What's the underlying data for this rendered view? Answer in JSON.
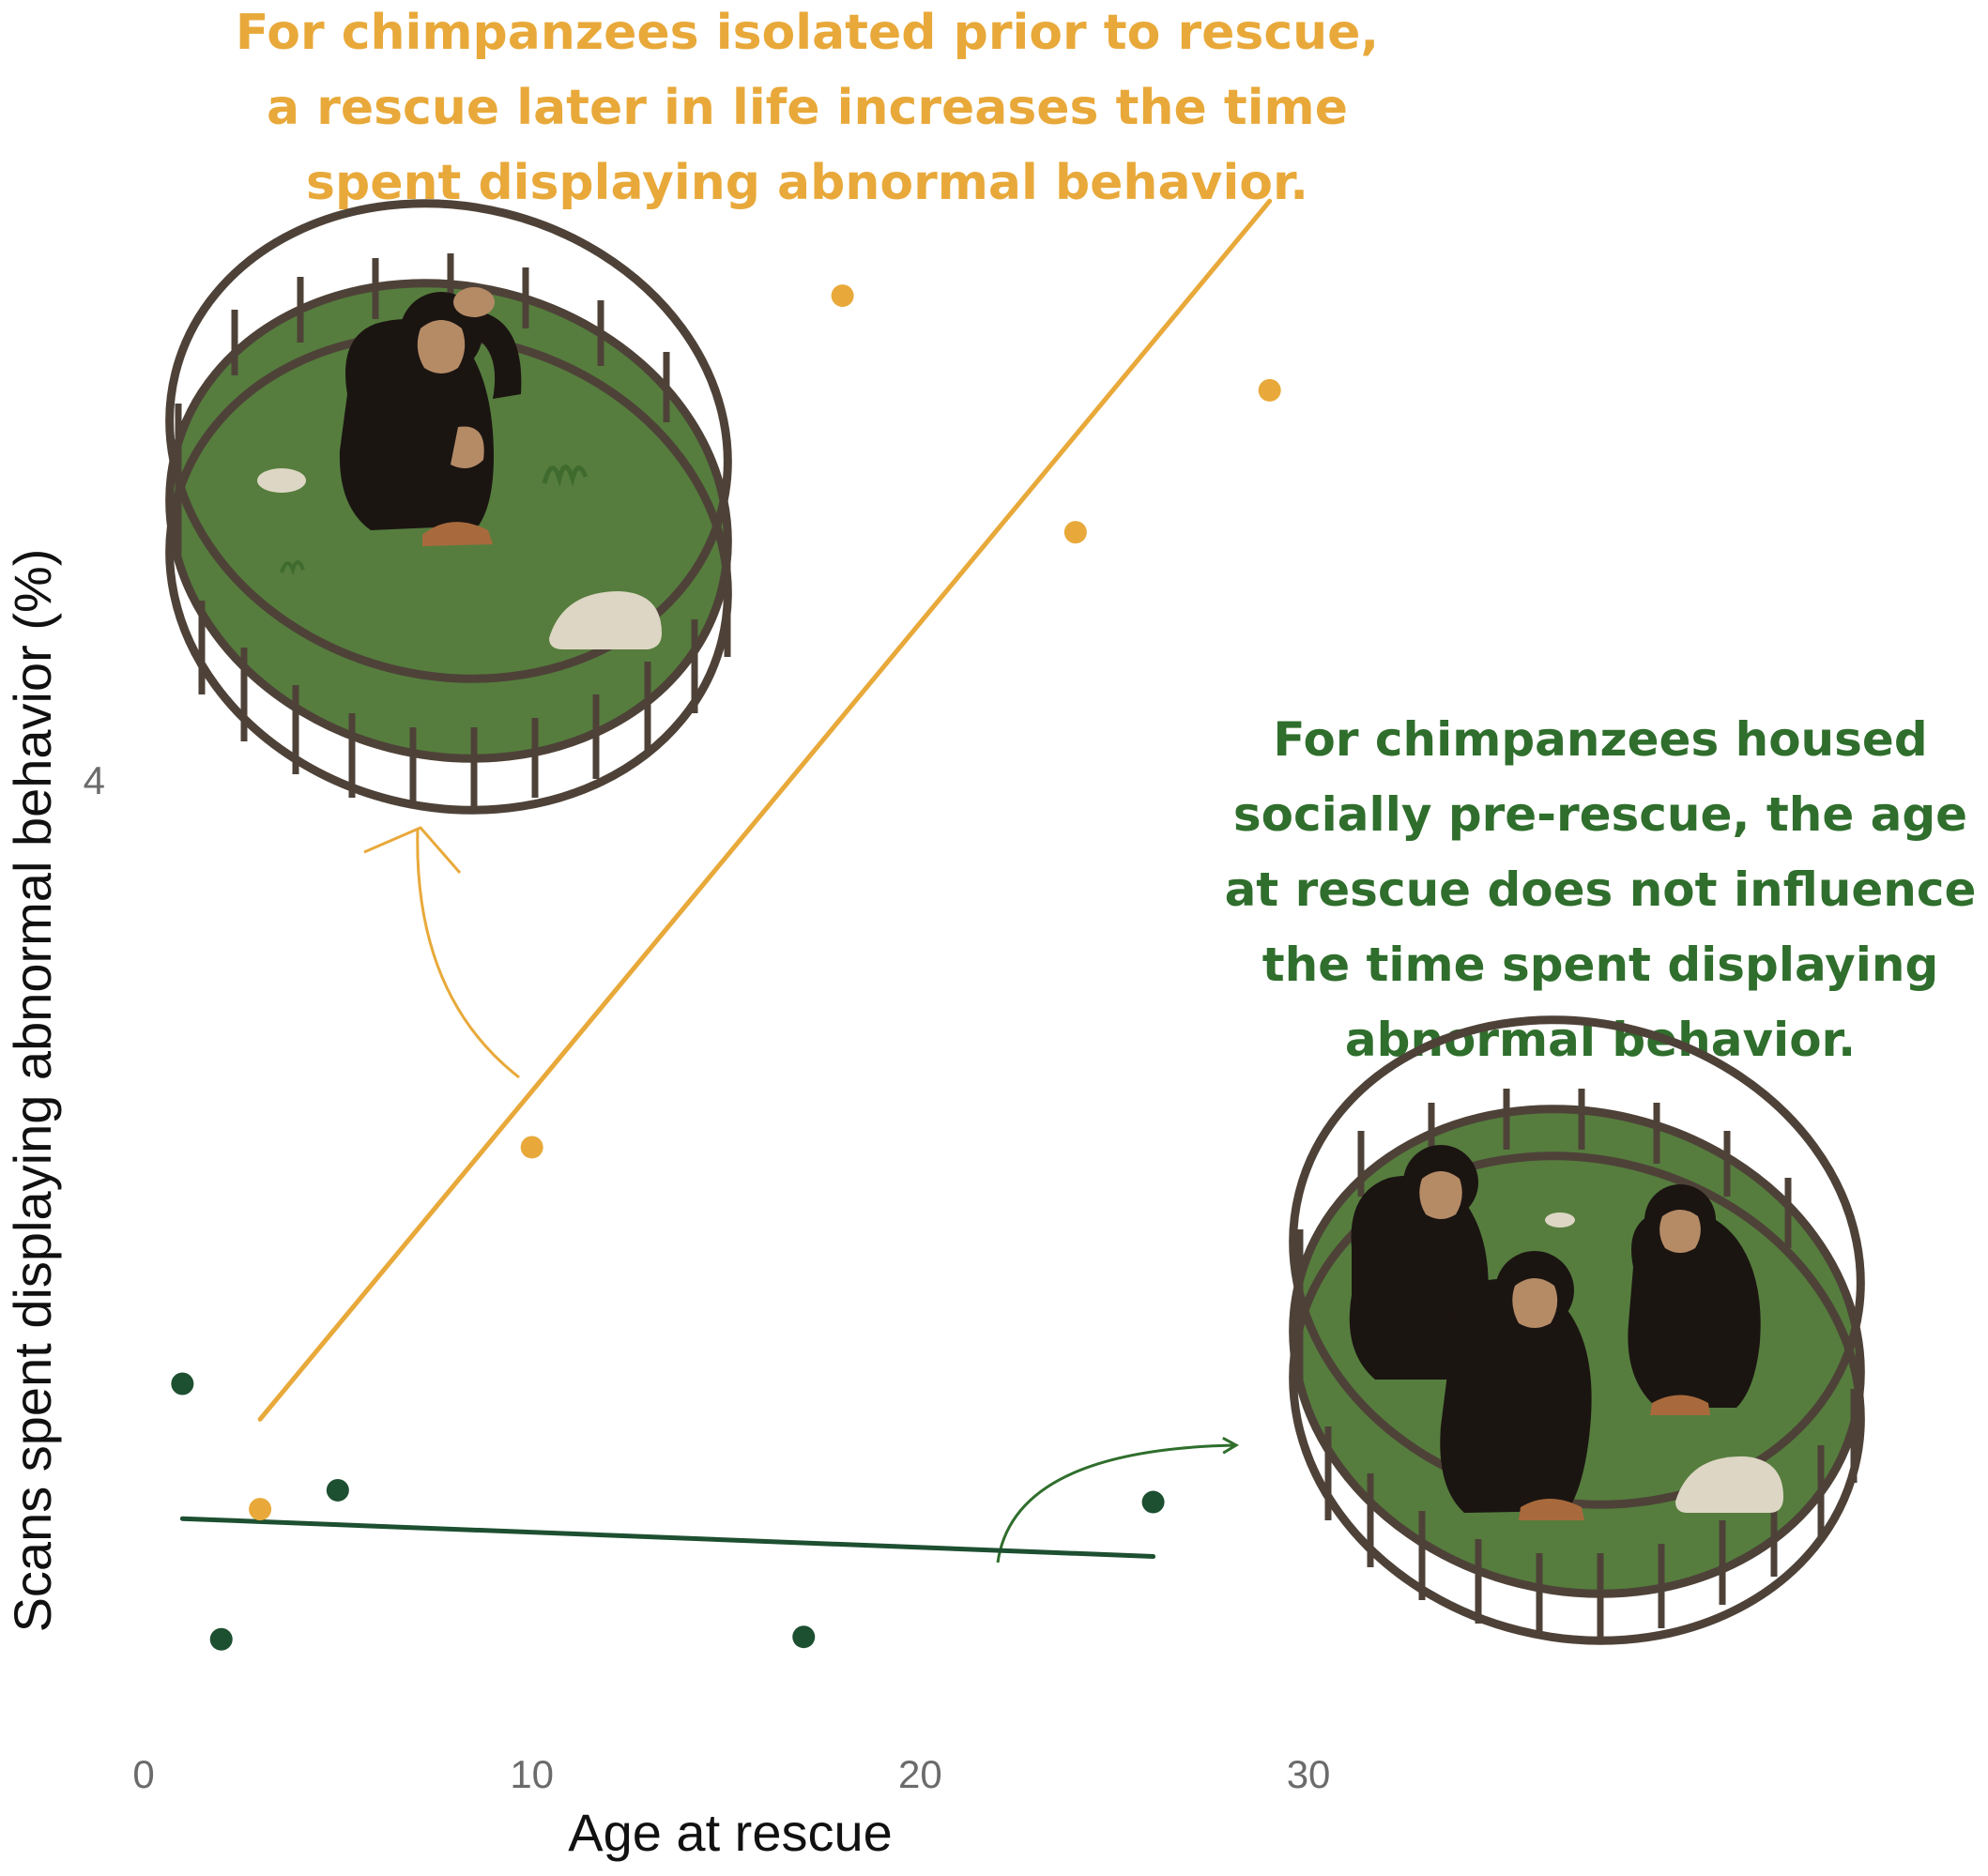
{
  "chart_data": {
    "type": "scatter",
    "xlabel": "Age at rescue",
    "ylabel": "Scans spent displaying abnormal behavior (%)",
    "x_ticks": [
      0,
      10,
      20,
      30
    ],
    "y_ticks": [
      4
    ],
    "xlim": [
      0,
      47.5
    ],
    "ylim": [
      0,
      7.3
    ],
    "grid": false,
    "legend": "none",
    "series": [
      {
        "color": "#e8a93a",
        "points": [
          {
            "x": 3,
            "y": 0.92
          },
          {
            "x": 10,
            "y": 2.45
          },
          {
            "x": 18,
            "y": 6.05
          },
          {
            "x": 24,
            "y": 5.05
          },
          {
            "x": 29,
            "y": 5.65
          }
        ],
        "trend": [
          {
            "x": 3,
            "y": 1.3
          },
          {
            "x": 29,
            "y": 6.45
          }
        ]
      },
      {
        "color": "#1d4f31",
        "points": [
          {
            "x": 1,
            "y": 1.45
          },
          {
            "x": 2,
            "y": 0.37
          },
          {
            "x": 5,
            "y": 1.0
          },
          {
            "x": 17,
            "y": 0.38
          },
          {
            "x": 26,
            "y": 0.95
          }
        ],
        "trend": [
          {
            "x": 1,
            "y": 0.88
          },
          {
            "x": 26,
            "y": 0.72
          }
        ]
      }
    ]
  },
  "annotations": {
    "isolated": [
      "For chimpanzees isolated prior to rescue,",
      "a rescue later in life increases the time",
      "spent displaying abnormal behavior."
    ],
    "social": [
      "For chimpanzees housed",
      "socially pre-rescue, the age",
      "at rescue does not influence",
      "the time spent displaying",
      "abnormal behavior."
    ]
  },
  "colors": {
    "isolated": "#e8a93a",
    "social": "#1d4f31",
    "social_text": "#2f6e2c",
    "grass": "#567d3e",
    "fence": "#4e4238",
    "rock": "#ddd6c4",
    "chimp": "#1b1512",
    "chimp_face": "#b58b66"
  },
  "icons": [
    "single-chimpanzee-enclosure-illustration",
    "group-chimpanzee-enclosure-illustration",
    "curved-arrow-icon"
  ]
}
